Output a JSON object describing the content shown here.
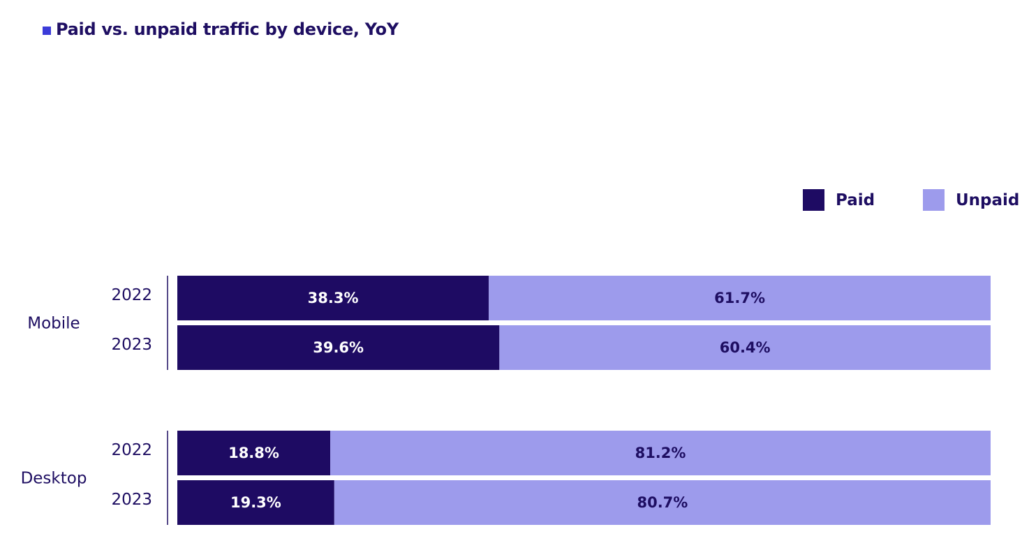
{
  "title": "Paid vs. unpaid traffic by device, YoY",
  "colors": {
    "accent": "#3b3bd9",
    "paid": "#1e0b63",
    "unpaid": "#9d9bec",
    "text": "#1e0e62"
  },
  "legend": [
    {
      "label": "Paid",
      "color": "#1e0b63"
    },
    {
      "label": "Unpaid",
      "color": "#9d9bec"
    }
  ],
  "chart_data": {
    "type": "bar",
    "orientation": "horizontal",
    "stacked": true,
    "title": "Paid vs. unpaid traffic by device, YoY",
    "legend_placement": "top-right",
    "grid": false,
    "xlim": [
      0,
      100
    ],
    "unit": "%",
    "groups": [
      {
        "name": "Mobile",
        "rows": [
          {
            "year": "2022",
            "paid": 38.3,
            "unpaid": 61.7,
            "paid_label": "38.3%",
            "unpaid_label": "61.7%"
          },
          {
            "year": "2023",
            "paid": 39.6,
            "unpaid": 60.4,
            "paid_label": "39.6%",
            "unpaid_label": "60.4%"
          }
        ]
      },
      {
        "name": "Desktop",
        "rows": [
          {
            "year": "2022",
            "paid": 18.8,
            "unpaid": 81.2,
            "paid_label": "18.8%",
            "unpaid_label": "81.2%"
          },
          {
            "year": "2023",
            "paid": 19.3,
            "unpaid": 80.7,
            "paid_label": "19.3%",
            "unpaid_label": "80.7%"
          }
        ]
      }
    ]
  }
}
